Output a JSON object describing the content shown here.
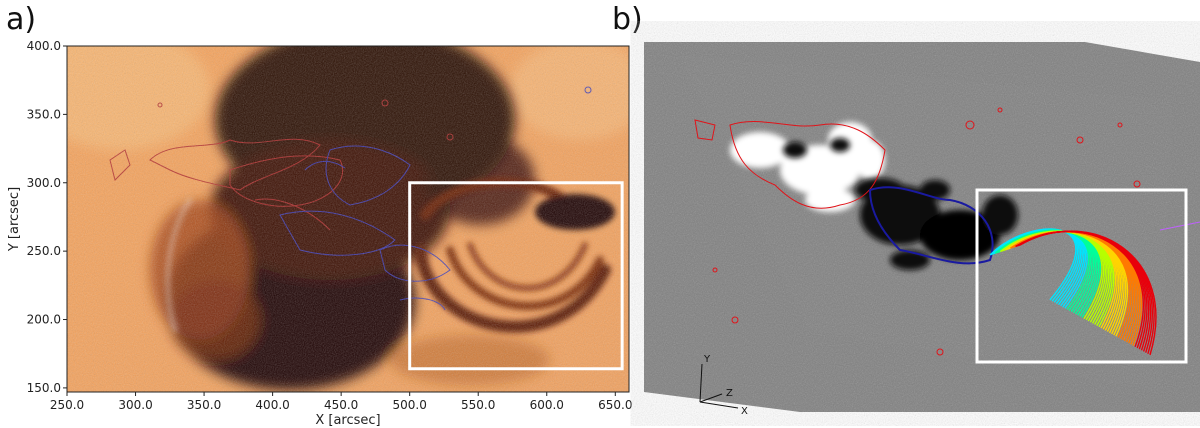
{
  "panels": {
    "a": {
      "label": "a)",
      "xlabel": "X [arcsec]",
      "ylabel": "Y [arcsec]",
      "xlim": [
        250,
        660
      ],
      "ylim": [
        147,
        400
      ],
      "xticks": [
        "250.0",
        "300.0",
        "350.0",
        "400.0",
        "450.0",
        "500.0",
        "550.0",
        "600.0",
        "650.0"
      ],
      "yticks": [
        "150.0",
        "200.0",
        "250.0",
        "300.0",
        "350.0",
        "400.0"
      ],
      "colormap": [
        "#f4a25a",
        "#1a0400"
      ],
      "box": {
        "x": [
          500,
          655
        ],
        "y": [
          164,
          300
        ]
      }
    },
    "b": {
      "label": "b)",
      "axis_labels": {
        "y": "Y",
        "z": "Z",
        "x": "X"
      },
      "loop_colors": [
        "#00e5ff",
        "#00ff9a",
        "#b6ff00",
        "#ffd400",
        "#ff7a00",
        "#e8000b"
      ]
    }
  }
}
